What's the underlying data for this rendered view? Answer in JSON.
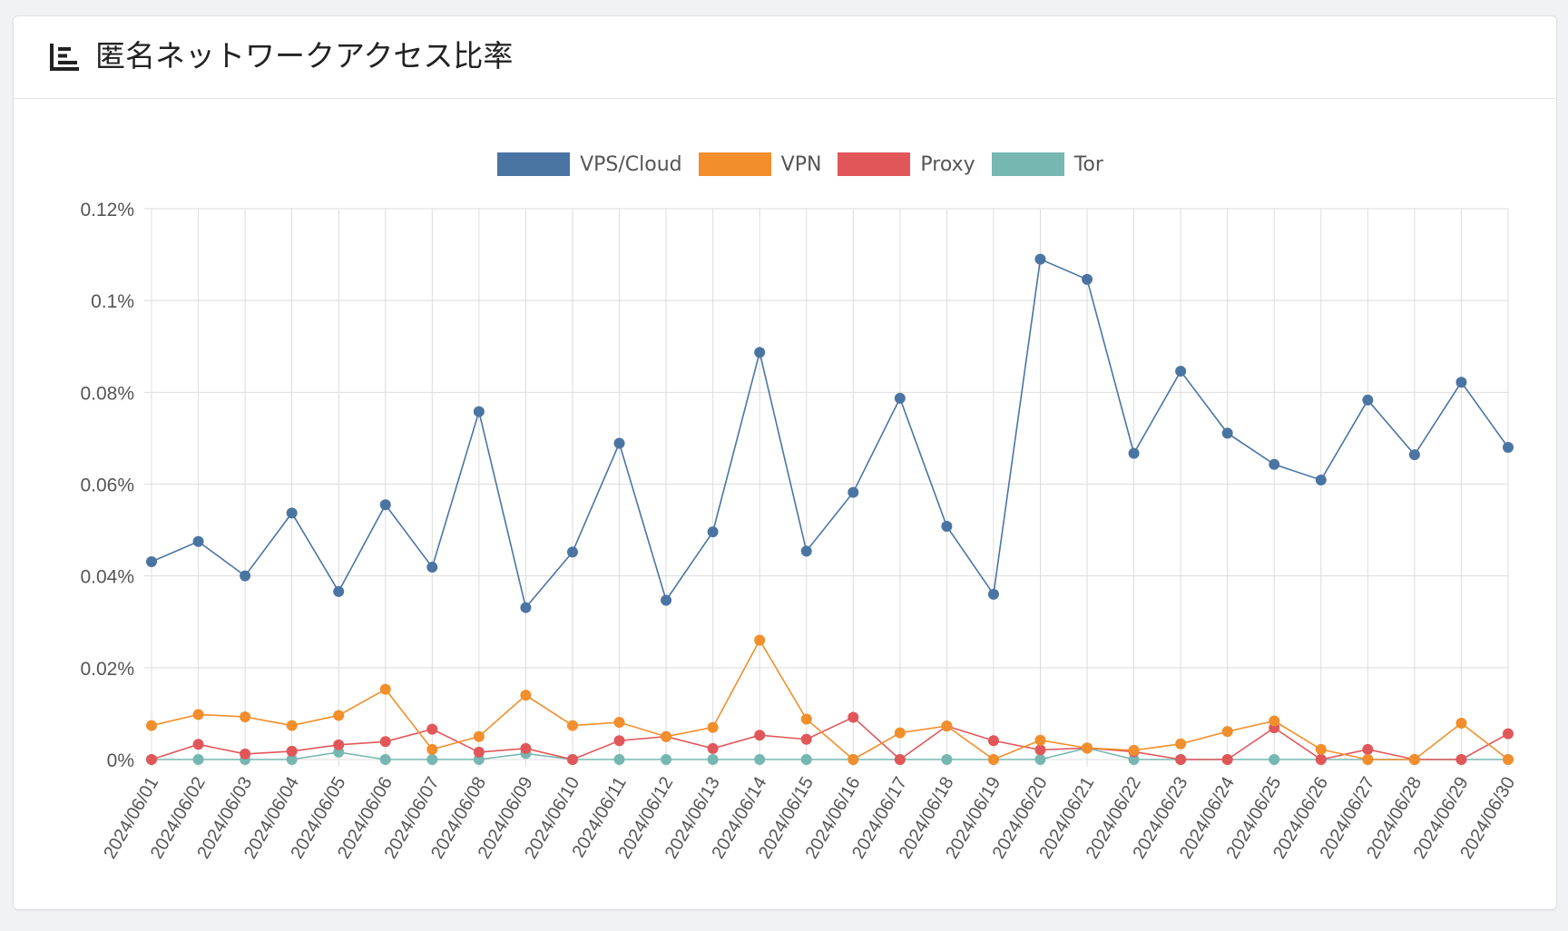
{
  "card": {
    "title": "匿名ネットワークアクセス比率",
    "icon": "chart-bars-icon"
  },
  "chart_data": {
    "type": "line",
    "title": "匿名ネットワークアクセス比率",
    "xlabel": "",
    "ylabel": "",
    "ylim": [
      0,
      0.12
    ],
    "y_ticks": [
      0,
      0.02,
      0.04,
      0.06,
      0.08,
      0.1,
      0.12
    ],
    "y_tick_labels": [
      "0%",
      "0.02%",
      "0.04%",
      "0.06%",
      "0.08%",
      "0.1%",
      "0.12%"
    ],
    "grid": true,
    "legend_position": "top-center",
    "categories": [
      "2024/06/01",
      "2024/06/02",
      "2024/06/03",
      "2024/06/04",
      "2024/06/05",
      "2024/06/06",
      "2024/06/07",
      "2024/06/08",
      "2024/06/09",
      "2024/06/10",
      "2024/06/11",
      "2024/06/12",
      "2024/06/13",
      "2024/06/14",
      "2024/06/15",
      "2024/06/16",
      "2024/06/17",
      "2024/06/18",
      "2024/06/19",
      "2024/06/20",
      "2024/06/21",
      "2024/06/22",
      "2024/06/23",
      "2024/06/24",
      "2024/06/25",
      "2024/06/26",
      "2024/06/27",
      "2024/06/28",
      "2024/06/29",
      "2024/06/30"
    ],
    "series": [
      {
        "name": "VPS/Cloud",
        "color": "#4a75a3",
        "values": [
          0.0431,
          0.0475,
          0.04,
          0.0537,
          0.0366,
          0.0555,
          0.0419,
          0.0758,
          0.0331,
          0.0452,
          0.0689,
          0.0347,
          0.0496,
          0.0887,
          0.0454,
          0.0582,
          0.0787,
          0.0508,
          0.036,
          0.109,
          0.1046,
          0.0667,
          0.0846,
          0.0711,
          0.0643,
          0.0609,
          0.0783,
          0.0664,
          0.0822,
          0.068
        ]
      },
      {
        "name": "VPN",
        "color": "#f28e2b",
        "values": [
          0.0074,
          0.0098,
          0.0093,
          0.0074,
          0.0096,
          0.0153,
          0.0022,
          0.005,
          0.014,
          0.0074,
          0.0081,
          0.005,
          0.007,
          0.026,
          0.0088,
          0.0,
          0.0058,
          0.0073,
          0.0,
          0.0042,
          0.0025,
          0.002,
          0.0034,
          0.0061,
          0.0084,
          0.0022,
          0.0,
          0.0,
          0.0079,
          0.0
        ]
      },
      {
        "name": "Proxy",
        "color": "#e15759",
        "values": [
          0.0,
          0.0033,
          0.0012,
          0.0018,
          0.0032,
          0.0039,
          0.0066,
          0.0016,
          0.0024,
          0.0,
          0.0041,
          0.005,
          0.0024,
          0.0053,
          0.0044,
          0.0092,
          0.0,
          0.0073,
          0.0041,
          0.0021,
          0.0025,
          0.0017,
          0.0,
          0.0,
          0.0069,
          0.0,
          0.0022,
          0.0,
          0.0,
          0.0056
        ]
      },
      {
        "name": "Tor",
        "color": "#76b7b2",
        "values": [
          0.0,
          0.0,
          0.0,
          0.0,
          0.0016,
          0.0,
          0.0,
          0.0,
          0.0013,
          0.0,
          0.0,
          0.0,
          0.0,
          0.0,
          0.0,
          0.0,
          0.0,
          0.0,
          0.0,
          0.0,
          0.0025,
          0.0,
          0.0,
          0.0,
          0.0,
          0.0,
          0.0,
          0.0,
          0.0,
          0.0
        ]
      }
    ]
  }
}
